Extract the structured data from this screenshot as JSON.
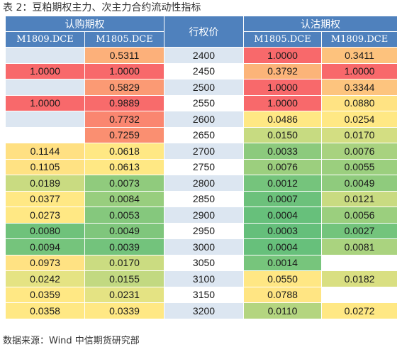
{
  "title": "表 2：豆粕期权主力、次主力合约流动性指标",
  "headers": {
    "call_group": "认购期权",
    "put_group": "认沽期权",
    "strike": "行权价",
    "call_cols": [
      "M1809.DCE",
      "M1805.DCE"
    ],
    "put_cols": [
      "M1805.DCE",
      "M1809.DCE"
    ]
  },
  "rows": [
    {
      "strike": "2400",
      "cells": [
        {
          "v": "",
          "c": "#dce6f1"
        },
        {
          "v": "0.5311",
          "c": "#fcb07a"
        },
        {
          "v": "1.0000",
          "c": "#f8696b"
        },
        {
          "v": "0.3411",
          "c": "#fdc27d"
        }
      ]
    },
    {
      "strike": "2450",
      "cells": [
        {
          "v": "1.0000",
          "c": "#f8696b"
        },
        {
          "v": "1.0000",
          "c": "#f8696b"
        },
        {
          "v": "0.3792",
          "c": "#fcb479"
        },
        {
          "v": "1.0000",
          "c": "#f8696b"
        }
      ]
    },
    {
      "strike": "2500",
      "cells": [
        {
          "v": "",
          "c": "#dce6f1"
        },
        {
          "v": "0.5829",
          "c": "#fb9a74"
        },
        {
          "v": "1.0000",
          "c": "#f8696b"
        },
        {
          "v": "0.3344",
          "c": "#fdc47e"
        }
      ]
    },
    {
      "strike": "2550",
      "cells": [
        {
          "v": "1.0000",
          "c": "#f8696b"
        },
        {
          "v": "0.9889",
          "c": "#f86b6b"
        },
        {
          "v": "1.0000",
          "c": "#f8696b"
        },
        {
          "v": "0.0880",
          "c": "#ffe383"
        }
      ]
    },
    {
      "strike": "2600",
      "cells": [
        {
          "v": "",
          "c": "#dce6f1"
        },
        {
          "v": "0.7732",
          "c": "#fa8670"
        },
        {
          "v": "0.0486",
          "c": "#ffe884"
        },
        {
          "v": "0.0254",
          "c": "#ffe884"
        }
      ]
    },
    {
      "strike": "2650",
      "cells": [
        {
          "v": "",
          "c": "#ffffff"
        },
        {
          "v": "0.7259",
          "c": "#fa8f71"
        },
        {
          "v": "0.0150",
          "c": "#c7db81"
        },
        {
          "v": "0.0170",
          "c": "#d3de82"
        }
      ]
    },
    {
      "strike": "2700",
      "cells": [
        {
          "v": "0.1144",
          "c": "#ffe082"
        },
        {
          "v": "0.0618",
          "c": "#ffe884"
        },
        {
          "v": "0.0033",
          "c": "#8cca7d"
        },
        {
          "v": "0.0076",
          "c": "#a8d27f"
        }
      ]
    },
    {
      "strike": "2750",
      "cells": [
        {
          "v": "0.1105",
          "c": "#ffe283"
        },
        {
          "v": "0.0613",
          "c": "#ffe884"
        },
        {
          "v": "0.0076",
          "c": "#9ccf7e"
        },
        {
          "v": "0.0055",
          "c": "#9bcf7e"
        }
      ]
    },
    {
      "strike": "2800",
      "cells": [
        {
          "v": "0.0189",
          "c": "#c9db81"
        },
        {
          "v": "0.0073",
          "c": "#90cb7d"
        },
        {
          "v": "0.0012",
          "c": "#75c47c"
        },
        {
          "v": "0.0049",
          "c": "#8fcb7d"
        }
      ]
    },
    {
      "strike": "2850",
      "cells": [
        {
          "v": "0.0377",
          "c": "#ffe884"
        },
        {
          "v": "0.0084",
          "c": "#98ce7e"
        },
        {
          "v": "0.0007",
          "c": "#6cc17b"
        },
        {
          "v": "0.0121",
          "c": "#c9db81"
        }
      ]
    },
    {
      "strike": "2900",
      "cells": [
        {
          "v": "0.0273",
          "c": "#ffe884"
        },
        {
          "v": "0.0053",
          "c": "#85c87d"
        },
        {
          "v": "0.0004",
          "c": "#67c07b"
        },
        {
          "v": "0.0056",
          "c": "#9bcf7e"
        }
      ]
    },
    {
      "strike": "2950",
      "cells": [
        {
          "v": "0.0080",
          "c": "#6fc27b"
        },
        {
          "v": "0.0049",
          "c": "#7fc67c"
        },
        {
          "v": "0.0003",
          "c": "#65bf7b"
        },
        {
          "v": "0.0027",
          "c": "#73c47c"
        }
      ]
    },
    {
      "strike": "3000",
      "cells": [
        {
          "v": "0.0094",
          "c": "#75c47c"
        },
        {
          "v": "0.0039",
          "c": "#73c37c"
        },
        {
          "v": "0.0004",
          "c": "#67c07b"
        },
        {
          "v": "0.0081",
          "c": "#aad37f"
        }
      ]
    },
    {
      "strike": "3050",
      "cells": [
        {
          "v": "0.0973",
          "c": "#ffe283"
        },
        {
          "v": "0.0170",
          "c": "#cbdc81"
        },
        {
          "v": "0.0014",
          "c": "#77c57c"
        },
        {
          "v": "",
          "c": "#ffffff"
        }
      ]
    },
    {
      "strike": "3100",
      "cells": [
        {
          "v": "0.0242",
          "c": "#e5e383"
        },
        {
          "v": "0.0155",
          "c": "#c2d981"
        },
        {
          "v": "0.0550",
          "c": "#ffe784"
        },
        {
          "v": "0.0182",
          "c": "#d9df82"
        }
      ]
    },
    {
      "strike": "3150",
      "cells": [
        {
          "v": "0.0359",
          "c": "#ffe884"
        },
        {
          "v": "0.0231",
          "c": "#e4e383"
        },
        {
          "v": "0.0788",
          "c": "#ffe583"
        },
        {
          "v": "",
          "c": "#ffffff"
        }
      ]
    },
    {
      "strike": "3200",
      "cells": [
        {
          "v": "0.0358",
          "c": "#ffe884"
        },
        {
          "v": "0.0339",
          "c": "#ffe884"
        },
        {
          "v": "0.0110",
          "c": "#b4d580"
        },
        {
          "v": "0.0272",
          "c": "#ffe884"
        }
      ]
    }
  ],
  "source": "数据来源：Wind  中信期货研究部"
}
